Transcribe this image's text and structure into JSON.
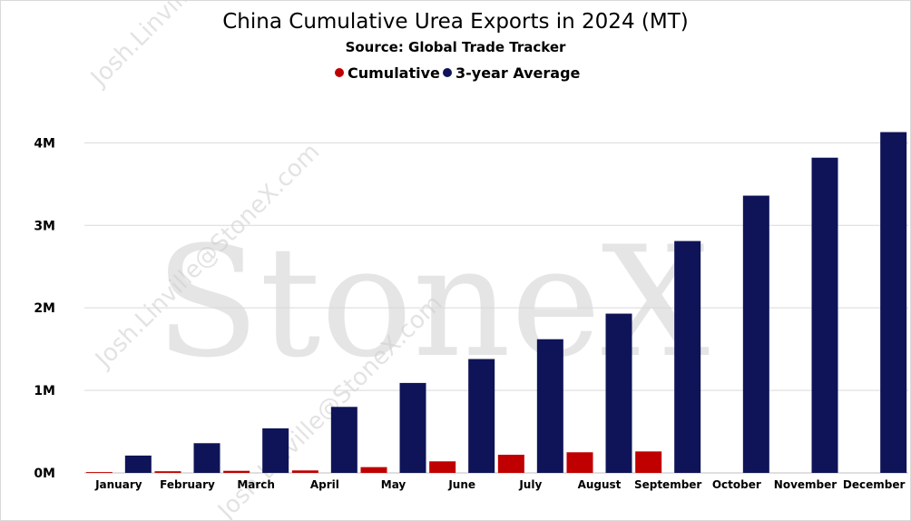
{
  "watermark": {
    "brand": "StoneX",
    "email": "Josh.Linville@StoneX.com"
  },
  "chart_data": {
    "type": "bar",
    "title": "China Cumulative Urea Exports in 2024 (MT)",
    "subtitle": "Source: Global Trade Tracker",
    "legend_position": "top",
    "grid": true,
    "categories": [
      "January",
      "February",
      "March",
      "April",
      "May",
      "June",
      "July",
      "August",
      "September",
      "October",
      "November",
      "December"
    ],
    "series": [
      {
        "name": "Cumulative",
        "color": "#c00000",
        "values": [
          10000,
          20000,
          25000,
          30000,
          70000,
          140000,
          220000,
          250000,
          260000,
          null,
          null,
          null
        ]
      },
      {
        "name": "3-year Average",
        "color": "#0e1457",
        "values": [
          210000,
          360000,
          540000,
          800000,
          1090000,
          1380000,
          1620000,
          1930000,
          2810000,
          3360000,
          3820000,
          4130000
        ]
      }
    ],
    "ylim": [
      0,
      4400000
    ],
    "yticks": [
      0,
      1000000,
      2000000,
      3000000,
      4000000
    ],
    "ytick_labels": [
      "0M",
      "1M",
      "2M",
      "3M",
      "4M"
    ],
    "xlabel": "",
    "ylabel": ""
  }
}
